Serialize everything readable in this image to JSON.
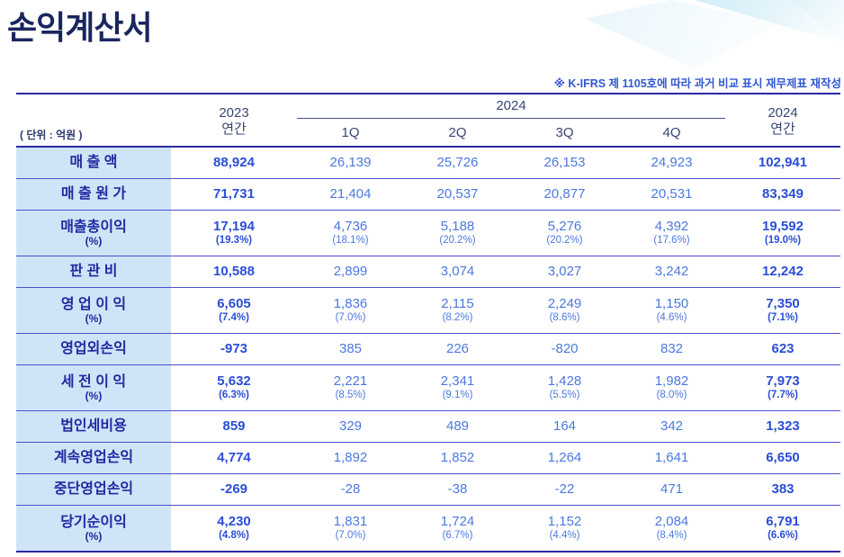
{
  "page": {
    "title": "손익계산서",
    "note": "※ K-IFRS 제 1105호에 따라 과거 비교 표시 재무제표 재작성",
    "unit_label": "( 단위 : 억원 )"
  },
  "colors": {
    "title_navy": "#1a265e",
    "strong_rule": "#2a2aa2",
    "row_rule": "#4a52cc",
    "label_cell_bg": "#cfe4f7",
    "label_text": "#1f2ba2",
    "value_bold": "#2b4ed6",
    "value_regular": "#4c78dd",
    "header_text": "#3a4673",
    "note_text": "#3157d0",
    "decoration_blue": "#c7e8f4"
  },
  "table": {
    "col_2023": [
      "2023",
      "연간"
    ],
    "group_2024": "2024",
    "quarters": [
      "1Q",
      "2Q",
      "3Q",
      "4Q"
    ],
    "col_2024": [
      "2024",
      "연간"
    ],
    "rows": [
      {
        "label": "매 출 액",
        "values": [
          "88,924",
          "26,139",
          "25,726",
          "26,153",
          "24,923",
          "102,941"
        ],
        "pcts": null
      },
      {
        "label": "매 출 원 가",
        "values": [
          "71,731",
          "21,404",
          "20,537",
          "20,877",
          "20,531",
          "83,349"
        ],
        "pcts": null
      },
      {
        "label": "매출총이익",
        "pct_label": "(%)",
        "values": [
          "17,194",
          "4,736",
          "5,188",
          "5,276",
          "4,392",
          "19,592"
        ],
        "pcts": [
          "(19.3%)",
          "(18.1%)",
          "(20.2%)",
          "(20.2%)",
          "(17.6%)",
          "(19.0%)"
        ]
      },
      {
        "label": "판 관 비",
        "values": [
          "10,588",
          "2,899",
          "3,074",
          "3,027",
          "3,242",
          "12,242"
        ],
        "pcts": null
      },
      {
        "label": "영 업 이 익",
        "pct_label": "(%)",
        "values": [
          "6,605",
          "1,836",
          "2,115",
          "2,249",
          "1,150",
          "7,350"
        ],
        "pcts": [
          "(7.4%)",
          "(7.0%)",
          "(8.2%)",
          "(8.6%)",
          "(4.6%)",
          "(7.1%)"
        ]
      },
      {
        "label": "영업외손익",
        "values": [
          "-973",
          "385",
          "226",
          "-820",
          "832",
          "623"
        ],
        "pcts": null
      },
      {
        "label": "세 전 이 익",
        "pct_label": "(%)",
        "values": [
          "5,632",
          "2,221",
          "2,341",
          "1,428",
          "1,982",
          "7,973"
        ],
        "pcts": [
          "(6.3%)",
          "(8.5%)",
          "(9.1%)",
          "(5.5%)",
          "(8.0%)",
          "(7.7%)"
        ]
      },
      {
        "label": "법인세비용",
        "values": [
          "859",
          "329",
          "489",
          "164",
          "342",
          "1,323"
        ],
        "pcts": null
      },
      {
        "label": "계속영업손익",
        "values": [
          "4,774",
          "1,892",
          "1,852",
          "1,264",
          "1,641",
          "6,650"
        ],
        "pcts": null
      },
      {
        "label": "중단영업손익",
        "values": [
          "-269",
          "-28",
          "-38",
          "-22",
          "471",
          "383"
        ],
        "pcts": null
      },
      {
        "label": "당기순이익",
        "pct_label": "(%)",
        "values": [
          "4,230",
          "1,831",
          "1,724",
          "1,152",
          "2,084",
          "6,791"
        ],
        "pcts": [
          "(4.8%)",
          "(7.0%)",
          "(6.7%)",
          "(4.4%)",
          "(8.4%)",
          "(6.6%)"
        ]
      }
    ]
  }
}
